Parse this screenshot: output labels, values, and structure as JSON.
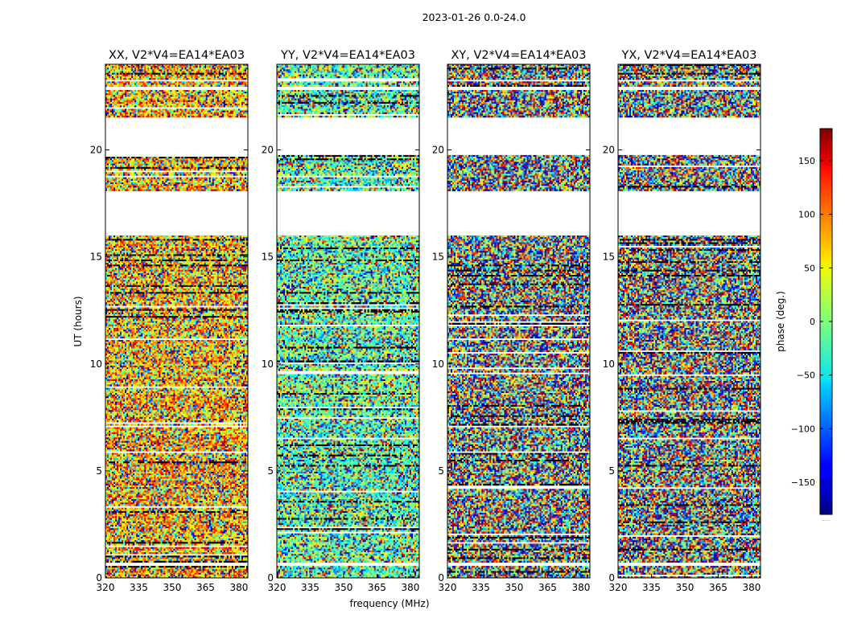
{
  "figure_title": "2023-01-26 0.0-24.0",
  "chart_data": {
    "type": "heatmap",
    "suptitle": "2023-01-26 0.0-24.0",
    "xlabel": "frequency (MHz)",
    "ylabel": "UT (hours)",
    "xlim": [
      320,
      384
    ],
    "ylim": [
      0,
      24
    ],
    "xticks": [
      320,
      335,
      350,
      365,
      380
    ],
    "yticks": [
      0,
      5,
      10,
      15,
      20
    ],
    "panels": [
      {
        "title": "XX, V2*V4=EA14*EA03",
        "polarization": "XX",
        "phase_bias": 70,
        "bias_strength": 0.55
      },
      {
        "title": "YY, V2*V4=EA14*EA03",
        "polarization": "YY",
        "phase_bias": -15,
        "bias_strength": 0.55
      },
      {
        "title": "XY, V2*V4=EA14*EA03",
        "polarization": "XY",
        "phase_bias": 0,
        "bias_strength": 0.0
      },
      {
        "title": "YX, V2*V4=EA14*EA03",
        "polarization": "YX",
        "phase_bias": 0,
        "bias_strength": 0.0
      }
    ],
    "blank_time_ranges_hours": [
      [
        0.55,
        0.68
      ],
      [
        16.0,
        18.05
      ],
      [
        19.8,
        21.5
      ],
      [
        22.8,
        22.95
      ],
      [
        23.2,
        23.3
      ]
    ],
    "colorbar": {
      "label": "phase (deg.)",
      "range": [
        -180,
        180
      ],
      "ticks": [
        150,
        100,
        50,
        0,
        -50,
        -100,
        -150
      ],
      "tick_labels": [
        "150",
        "100",
        "50",
        "0",
        "−50",
        "−100",
        "−150"
      ],
      "colormap": "jet",
      "under_label": "....."
    }
  }
}
